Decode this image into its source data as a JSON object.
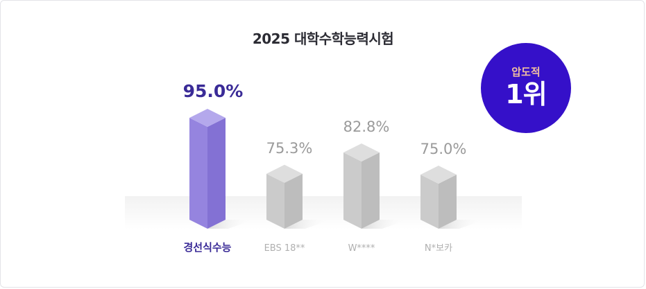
{
  "title": "2025 대학수학능력시험",
  "badge": {
    "sub": "압도적",
    "main": "1위"
  },
  "colors": {
    "highlight": "#7b66d6",
    "highlight_text": "#3a2b97",
    "badge_bg": "#3510c9",
    "other_bar": "#cfcfcf",
    "other_text": "#9a9a9a"
  },
  "chart_data": {
    "type": "bar",
    "categories": [
      "경선식수능",
      "EBS 18**",
      "W****",
      "N*보카"
    ],
    "values": [
      95.0,
      75.3,
      82.8,
      75.0
    ],
    "value_labels": [
      "95.0%",
      "75.3%",
      "82.8%",
      "75.0%"
    ],
    "highlight_index": 0,
    "title": "2025 대학수학능력시험",
    "xlabel": "",
    "ylabel": "",
    "ylim": [
      0,
      100
    ],
    "grid": false,
    "legend": "none"
  }
}
